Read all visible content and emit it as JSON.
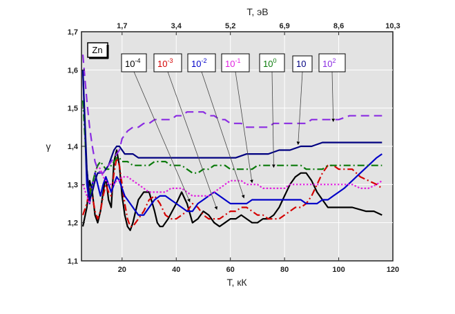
{
  "chart_data": {
    "type": "line",
    "xlabel": "T, кК",
    "ylabel": "γ",
    "top_xlabel": "T, эВ",
    "xlim": [
      5,
      120
    ],
    "ylim": [
      1.1,
      1.7
    ],
    "x_ticks": [
      "20",
      "40",
      "60",
      "80",
      "100",
      "120"
    ],
    "x_tick_values": [
      20,
      40,
      60,
      80,
      100,
      120
    ],
    "y_ticks": [
      "1,1",
      "1,2",
      "1,3",
      "1,4",
      "1,5",
      "1,6",
      "1,7"
    ],
    "y_tick_values": [
      1.1,
      1.2,
      1.3,
      1.4,
      1.5,
      1.6,
      1.7
    ],
    "top_ticks": [
      "1,7",
      "3,4",
      "5,2",
      "6,9",
      "8,6",
      "10,3"
    ],
    "top_tick_values": [
      1.7,
      3.4,
      5.2,
      6.9,
      8.6,
      10.3
    ],
    "grid": true,
    "background": "#e3e3e3",
    "panel_label": "Zn",
    "series": [
      {
        "mantissa": "10",
        "exponent": "-4",
        "color": "#000000",
        "dash": "solid",
        "x": [
          5.5,
          7,
          8,
          9,
          10,
          11,
          12,
          13,
          14,
          15,
          16,
          17,
          18,
          19,
          20,
          21,
          22,
          23,
          24,
          25,
          26,
          28,
          30,
          32,
          33,
          34,
          35,
          37,
          40,
          42,
          44,
          46,
          48,
          50,
          52,
          54,
          56,
          58,
          60,
          62,
          64,
          66,
          68,
          70,
          72,
          74,
          76,
          78,
          80,
          82,
          84,
          86,
          88,
          90,
          92,
          94,
          96,
          98,
          100,
          102,
          105,
          110,
          113,
          116
        ],
        "y": [
          1.19,
          1.24,
          1.31,
          1.28,
          1.22,
          1.2,
          1.23,
          1.28,
          1.32,
          1.26,
          1.24,
          1.36,
          1.39,
          1.35,
          1.27,
          1.22,
          1.19,
          1.18,
          1.2,
          1.23,
          1.26,
          1.28,
          1.28,
          1.23,
          1.2,
          1.19,
          1.19,
          1.21,
          1.25,
          1.28,
          1.25,
          1.2,
          1.21,
          1.23,
          1.22,
          1.2,
          1.19,
          1.2,
          1.21,
          1.21,
          1.22,
          1.21,
          1.2,
          1.2,
          1.21,
          1.21,
          1.22,
          1.24,
          1.27,
          1.3,
          1.32,
          1.33,
          1.33,
          1.31,
          1.28,
          1.26,
          1.24,
          1.24,
          1.24,
          1.24,
          1.24,
          1.23,
          1.23,
          1.22
        ]
      },
      {
        "mantissa": "10",
        "exponent": "-3",
        "color": "#d40000",
        "dash": "dashdot",
        "x": [
          5.5,
          7,
          8,
          9,
          10,
          11,
          12,
          13,
          14,
          15,
          16,
          17,
          18,
          19,
          20,
          21,
          22,
          23,
          24,
          25,
          26,
          28,
          30,
          32,
          34,
          36,
          38,
          40,
          42,
          44,
          46,
          48,
          50,
          52,
          54,
          56,
          58,
          60,
          62,
          64,
          66,
          68,
          70,
          72,
          74,
          76,
          78,
          80,
          82,
          84,
          86,
          88,
          90,
          92,
          94,
          96,
          98,
          100,
          102,
          105,
          108,
          111,
          114,
          116
        ],
        "y": [
          1.22,
          1.25,
          1.29,
          1.27,
          1.23,
          1.21,
          1.23,
          1.27,
          1.3,
          1.28,
          1.27,
          1.33,
          1.37,
          1.35,
          1.3,
          1.25,
          1.21,
          1.19,
          1.19,
          1.2,
          1.21,
          1.23,
          1.26,
          1.27,
          1.25,
          1.22,
          1.21,
          1.21,
          1.22,
          1.23,
          1.25,
          1.24,
          1.22,
          1.21,
          1.21,
          1.21,
          1.22,
          1.23,
          1.23,
          1.24,
          1.24,
          1.23,
          1.22,
          1.22,
          1.21,
          1.21,
          1.21,
          1.22,
          1.23,
          1.24,
          1.24,
          1.25,
          1.27,
          1.3,
          1.33,
          1.35,
          1.35,
          1.34,
          1.34,
          1.34,
          1.32,
          1.31,
          1.3,
          1.29
        ]
      },
      {
        "mantissa": "10",
        "exponent": "-2",
        "color": "#0000c8",
        "dash": "solid",
        "x": [
          5.5,
          7,
          8,
          9,
          10,
          11,
          12,
          13,
          14,
          15,
          16,
          17,
          18,
          19,
          20,
          21,
          22,
          24,
          26,
          28,
          30,
          32,
          34,
          36,
          38,
          40,
          42,
          44,
          46,
          48,
          50,
          52,
          54,
          56,
          58,
          60,
          62,
          64,
          66,
          68,
          70,
          72,
          74,
          76,
          78,
          80,
          82,
          84,
          86,
          88,
          90,
          92,
          94,
          96,
          98,
          100,
          102,
          105,
          108,
          111,
          114,
          116
        ],
        "y": [
          1.6,
          1.3,
          1.25,
          1.3,
          1.33,
          1.3,
          1.27,
          1.3,
          1.32,
          1.3,
          1.28,
          1.3,
          1.32,
          1.31,
          1.29,
          1.27,
          1.26,
          1.24,
          1.22,
          1.22,
          1.24,
          1.26,
          1.27,
          1.27,
          1.26,
          1.25,
          1.24,
          1.23,
          1.23,
          1.25,
          1.26,
          1.27,
          1.28,
          1.27,
          1.26,
          1.25,
          1.25,
          1.25,
          1.25,
          1.26,
          1.26,
          1.26,
          1.26,
          1.26,
          1.26,
          1.26,
          1.26,
          1.26,
          1.26,
          1.25,
          1.25,
          1.25,
          1.26,
          1.26,
          1.27,
          1.28,
          1.29,
          1.31,
          1.33,
          1.35,
          1.37,
          1.38
        ]
      },
      {
        "mantissa": "10",
        "exponent": "-1",
        "color": "#e020e0",
        "dash": "dot",
        "x": [
          5.5,
          7,
          8,
          9,
          10,
          11,
          12,
          13,
          14,
          15,
          16,
          17,
          18,
          19,
          20,
          22,
          24,
          26,
          28,
          30,
          32,
          34,
          36,
          38,
          40,
          42,
          44,
          46,
          48,
          50,
          52,
          54,
          56,
          58,
          60,
          62,
          64,
          66,
          68,
          70,
          72,
          74,
          76,
          78,
          80,
          82,
          84,
          86,
          88,
          90,
          92,
          94,
          96,
          98,
          100,
          102,
          105,
          108,
          111,
          114,
          116
        ],
        "y": [
          1.3,
          1.27,
          1.25,
          1.29,
          1.33,
          1.35,
          1.34,
          1.32,
          1.31,
          1.3,
          1.3,
          1.3,
          1.31,
          1.31,
          1.32,
          1.32,
          1.31,
          1.3,
          1.29,
          1.28,
          1.28,
          1.28,
          1.28,
          1.29,
          1.29,
          1.29,
          1.28,
          1.27,
          1.27,
          1.27,
          1.27,
          1.28,
          1.29,
          1.3,
          1.31,
          1.31,
          1.31,
          1.3,
          1.3,
          1.3,
          1.29,
          1.29,
          1.29,
          1.29,
          1.29,
          1.3,
          1.3,
          1.3,
          1.3,
          1.3,
          1.3,
          1.3,
          1.3,
          1.3,
          1.3,
          1.3,
          1.3,
          1.29,
          1.29,
          1.3,
          1.31
        ]
      },
      {
        "mantissa": "10",
        "exponent": "0",
        "color": "#0a7a0a",
        "dash": "dashdot",
        "x": [
          5.5,
          7,
          8,
          9,
          10,
          11,
          12,
          13,
          14,
          15,
          16,
          17,
          18,
          19,
          20,
          22,
          24,
          26,
          28,
          30,
          32,
          34,
          36,
          38,
          40,
          42,
          44,
          46,
          48,
          50,
          52,
          54,
          56,
          58,
          60,
          62,
          64,
          66,
          68,
          70,
          72,
          74,
          76,
          78,
          80,
          82,
          84,
          86,
          88,
          90,
          92,
          94,
          96,
          98,
          100,
          102,
          105,
          108,
          111,
          114,
          116
        ],
        "y": [
          1.52,
          1.34,
          1.27,
          1.3,
          1.33,
          1.35,
          1.36,
          1.35,
          1.34,
          1.34,
          1.35,
          1.36,
          1.37,
          1.37,
          1.36,
          1.36,
          1.35,
          1.35,
          1.35,
          1.35,
          1.36,
          1.36,
          1.36,
          1.35,
          1.35,
          1.35,
          1.34,
          1.33,
          1.33,
          1.34,
          1.34,
          1.35,
          1.35,
          1.35,
          1.34,
          1.34,
          1.34,
          1.34,
          1.34,
          1.35,
          1.35,
          1.35,
          1.35,
          1.35,
          1.35,
          1.35,
          1.35,
          1.35,
          1.34,
          1.34,
          1.34,
          1.34,
          1.35,
          1.35,
          1.35,
          1.35,
          1.35,
          1.35,
          1.35,
          1.35,
          1.35
        ]
      },
      {
        "mantissa": "10",
        "exponent": "",
        "color": "#000080",
        "dash": "solid",
        "x": [
          5.5,
          7,
          8,
          9,
          10,
          11,
          12,
          13,
          14,
          15,
          16,
          17,
          18,
          19,
          20,
          21,
          22,
          24,
          26,
          28,
          30,
          32,
          34,
          36,
          38,
          40,
          44,
          50,
          56,
          62,
          66,
          70,
          74,
          78,
          82,
          86,
          90,
          94,
          98,
          102,
          106,
          110,
          116
        ],
        "y": [
          1.6,
          1.34,
          1.26,
          1.28,
          1.31,
          1.33,
          1.33,
          1.33,
          1.34,
          1.35,
          1.37,
          1.39,
          1.4,
          1.4,
          1.39,
          1.38,
          1.38,
          1.38,
          1.37,
          1.37,
          1.37,
          1.37,
          1.37,
          1.37,
          1.37,
          1.37,
          1.37,
          1.37,
          1.37,
          1.37,
          1.38,
          1.38,
          1.38,
          1.39,
          1.39,
          1.4,
          1.4,
          1.41,
          1.41,
          1.41,
          1.41,
          1.41,
          1.41
        ]
      },
      {
        "mantissa": "10",
        "exponent": "2",
        "color": "#8a2be2",
        "dash": "dash",
        "x": [
          5.5,
          6,
          7,
          8,
          9,
          10,
          11,
          12,
          13,
          14,
          15,
          16,
          17,
          18,
          19,
          20,
          22,
          24,
          26,
          28,
          30,
          32,
          34,
          36,
          38,
          40,
          42,
          44,
          46,
          48,
          50,
          52,
          54,
          56,
          58,
          60,
          62,
          64,
          66,
          68,
          70,
          72,
          74,
          76,
          78,
          80,
          82,
          84,
          86,
          88,
          90,
          92,
          94,
          96,
          98,
          100,
          104,
          108,
          112,
          116
        ],
        "y": [
          1.64,
          1.6,
          1.52,
          1.45,
          1.4,
          1.36,
          1.34,
          1.33,
          1.33,
          1.34,
          1.35,
          1.36,
          1.37,
          1.38,
          1.39,
          1.42,
          1.44,
          1.45,
          1.45,
          1.46,
          1.46,
          1.47,
          1.47,
          1.47,
          1.47,
          1.48,
          1.48,
          1.49,
          1.49,
          1.49,
          1.49,
          1.48,
          1.48,
          1.47,
          1.47,
          1.46,
          1.46,
          1.46,
          1.45,
          1.45,
          1.45,
          1.45,
          1.45,
          1.46,
          1.46,
          1.46,
          1.46,
          1.46,
          1.46,
          1.46,
          1.47,
          1.47,
          1.47,
          1.47,
          1.47,
          1.47,
          1.48,
          1.48,
          1.48,
          1.48
        ]
      }
    ]
  }
}
